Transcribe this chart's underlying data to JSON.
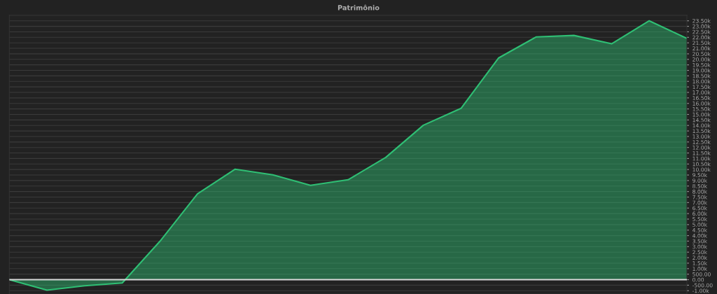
{
  "chart_data": {
    "type": "area",
    "title": "Patrimônio",
    "categories": [
      null,
      null,
      null,
      null,
      null,
      null,
      null,
      null,
      null,
      null,
      null,
      null,
      null,
      null,
      null,
      null,
      null,
      null,
      null
    ],
    "series": [
      {
        "color": "#2fbf74",
        "values": [
          0,
          -950,
          -550,
          -300,
          3480,
          7800,
          10030,
          9520,
          8560,
          9070,
          11100,
          14020,
          15550,
          20130,
          22040,
          22170,
          21410,
          23500,
          21900
        ]
      }
    ],
    "ylim": [
      -1300,
      24000
    ],
    "yticks": [
      {
        "value": -1000,
        "label": "-1.00k"
      },
      {
        "value": -500,
        "label": "-500.00"
      },
      {
        "value": 0,
        "label": "0.00"
      },
      {
        "value": 500,
        "label": "500.00"
      },
      {
        "value": 1000,
        "label": "1.00k"
      },
      {
        "value": 1500,
        "label": "1.50k"
      },
      {
        "value": 2000,
        "label": "2.00k"
      },
      {
        "value": 2500,
        "label": "2.50k"
      },
      {
        "value": 3000,
        "label": "3.00k"
      },
      {
        "value": 3500,
        "label": "3.50k"
      },
      {
        "value": 4000,
        "label": "4.00k"
      },
      {
        "value": 4500,
        "label": "4.50k"
      },
      {
        "value": 5000,
        "label": "5.00k"
      },
      {
        "value": 5500,
        "label": "5.50k"
      },
      {
        "value": 6000,
        "label": "6.00k"
      },
      {
        "value": 6500,
        "label": "6.50k"
      },
      {
        "value": 7000,
        "label": "7.00k"
      },
      {
        "value": 7500,
        "label": "7.50k"
      },
      {
        "value": 8000,
        "label": "8.00k"
      },
      {
        "value": 8500,
        "label": "8.50k"
      },
      {
        "value": 9000,
        "label": "9.00k"
      },
      {
        "value": 9500,
        "label": "9.50k"
      },
      {
        "value": 10000,
        "label": "10.00k"
      },
      {
        "value": 10500,
        "label": "10.50k"
      },
      {
        "value": 11000,
        "label": "11.00k"
      },
      {
        "value": 11500,
        "label": "11.50k"
      },
      {
        "value": 12000,
        "label": "12.00k"
      },
      {
        "value": 12500,
        "label": "12.50k"
      },
      {
        "value": 13000,
        "label": "13.00k"
      },
      {
        "value": 13500,
        "label": "13.50k"
      },
      {
        "value": 14000,
        "label": "14.00k"
      },
      {
        "value": 14500,
        "label": "14.50k"
      },
      {
        "value": 15000,
        "label": "15.00k"
      },
      {
        "value": 15500,
        "label": "15.50k"
      },
      {
        "value": 16000,
        "label": "16.00k"
      },
      {
        "value": 16500,
        "label": "16.50k"
      },
      {
        "value": 17000,
        "label": "17.00k"
      },
      {
        "value": 17500,
        "label": "17.50k"
      },
      {
        "value": 18000,
        "label": "18.00k"
      },
      {
        "value": 18500,
        "label": "18.50k"
      },
      {
        "value": 19000,
        "label": "19.00k"
      },
      {
        "value": 19500,
        "label": "19.50k"
      },
      {
        "value": 20000,
        "label": "20.00k"
      },
      {
        "value": 20500,
        "label": "20.50k"
      },
      {
        "value": 21000,
        "label": "21.00k"
      },
      {
        "value": 21500,
        "label": "21.50k"
      },
      {
        "value": 22000,
        "label": "22.00k"
      },
      {
        "value": 22500,
        "label": "22.50k"
      },
      {
        "value": 23000,
        "label": "23.00k"
      },
      {
        "value": 23500,
        "label": "23.50k"
      }
    ],
    "tick_labels": "y",
    "grid": "y",
    "ref_lines": [
      {
        "axis": "y",
        "value": 0,
        "color": "#d8d8d8"
      }
    ]
  }
}
